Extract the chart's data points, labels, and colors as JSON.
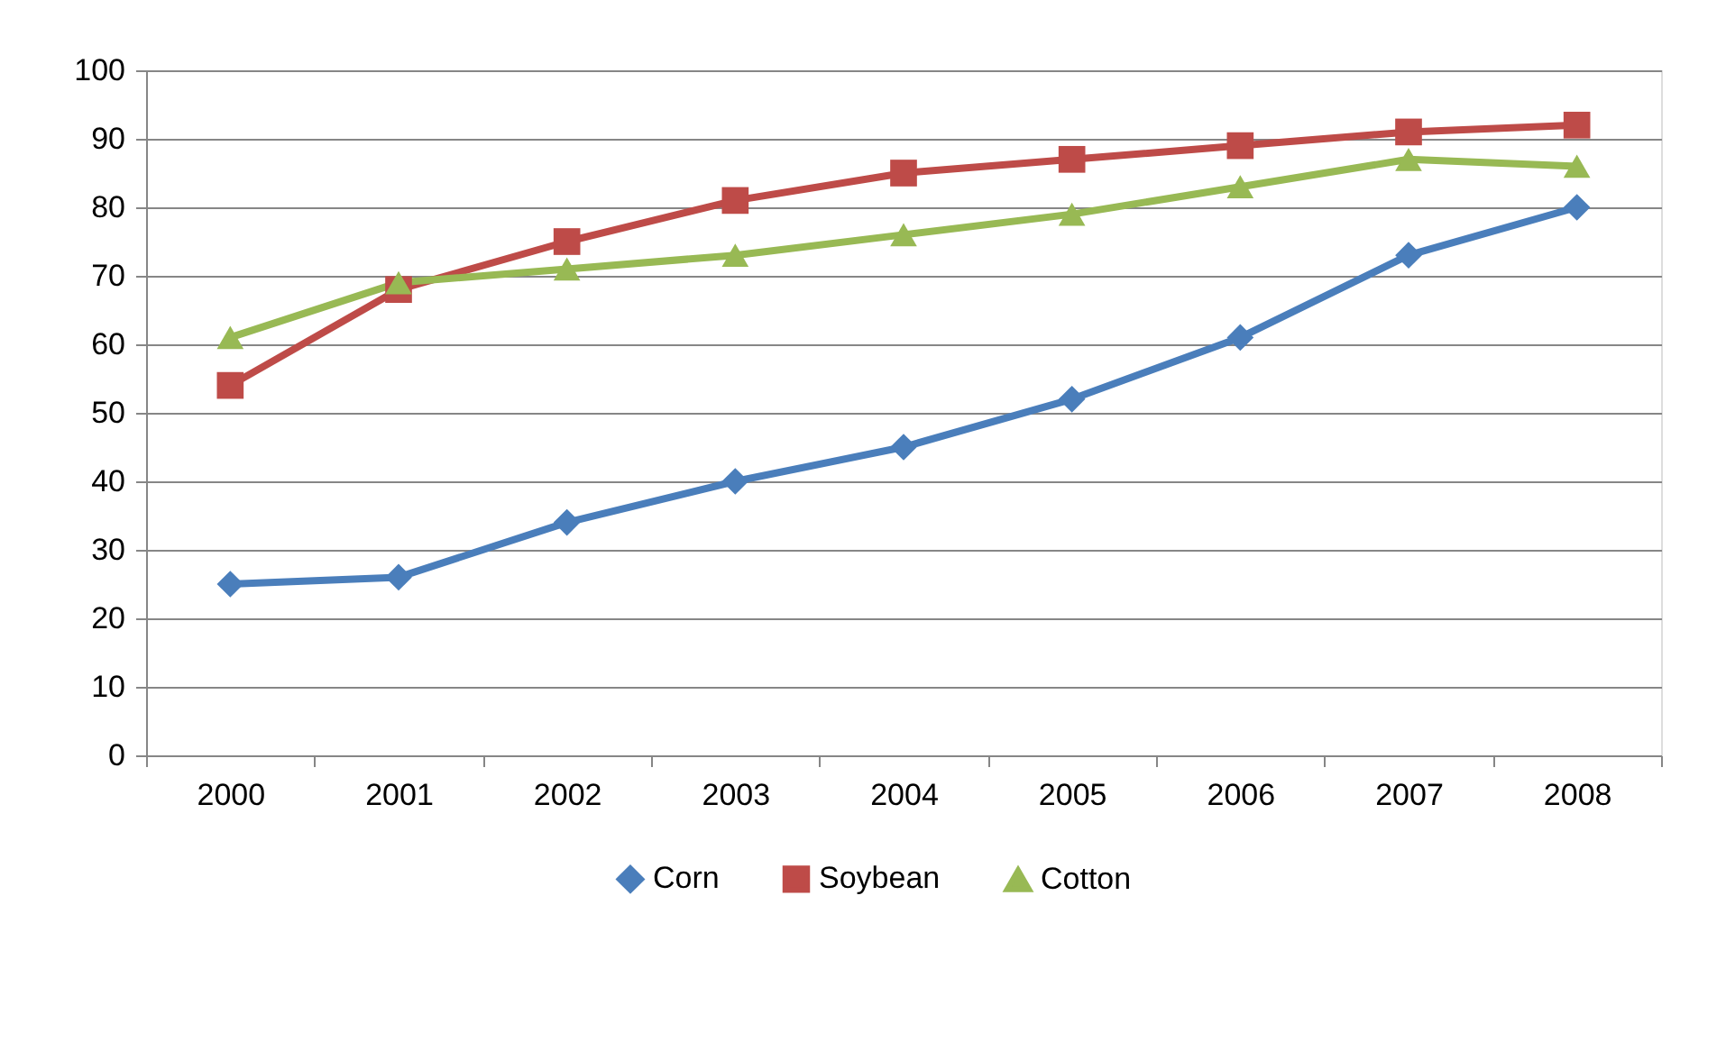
{
  "chart_data": {
    "type": "line",
    "categories": [
      "2000",
      "2001",
      "2002",
      "2003",
      "2004",
      "2005",
      "2006",
      "2007",
      "2008"
    ],
    "series": [
      {
        "name": "Corn",
        "color": "#4a7ebb",
        "marker": "diamond",
        "values": [
          25,
          26,
          34,
          40,
          45,
          52,
          61,
          73,
          80
        ]
      },
      {
        "name": "Soybean",
        "color": "#be4b48",
        "marker": "square",
        "values": [
          54,
          68,
          75,
          81,
          85,
          87,
          89,
          91,
          92
        ]
      },
      {
        "name": "Cotton",
        "color": "#98b954",
        "marker": "triangle",
        "values": [
          61,
          69,
          71,
          73,
          76,
          79,
          83,
          87,
          86
        ]
      }
    ],
    "ylim": [
      0,
      100
    ],
    "yticks": [
      0,
      10,
      20,
      30,
      40,
      50,
      60,
      70,
      80,
      90,
      100
    ],
    "grid": "y",
    "legend": "bottom",
    "line_style": "solid"
  }
}
